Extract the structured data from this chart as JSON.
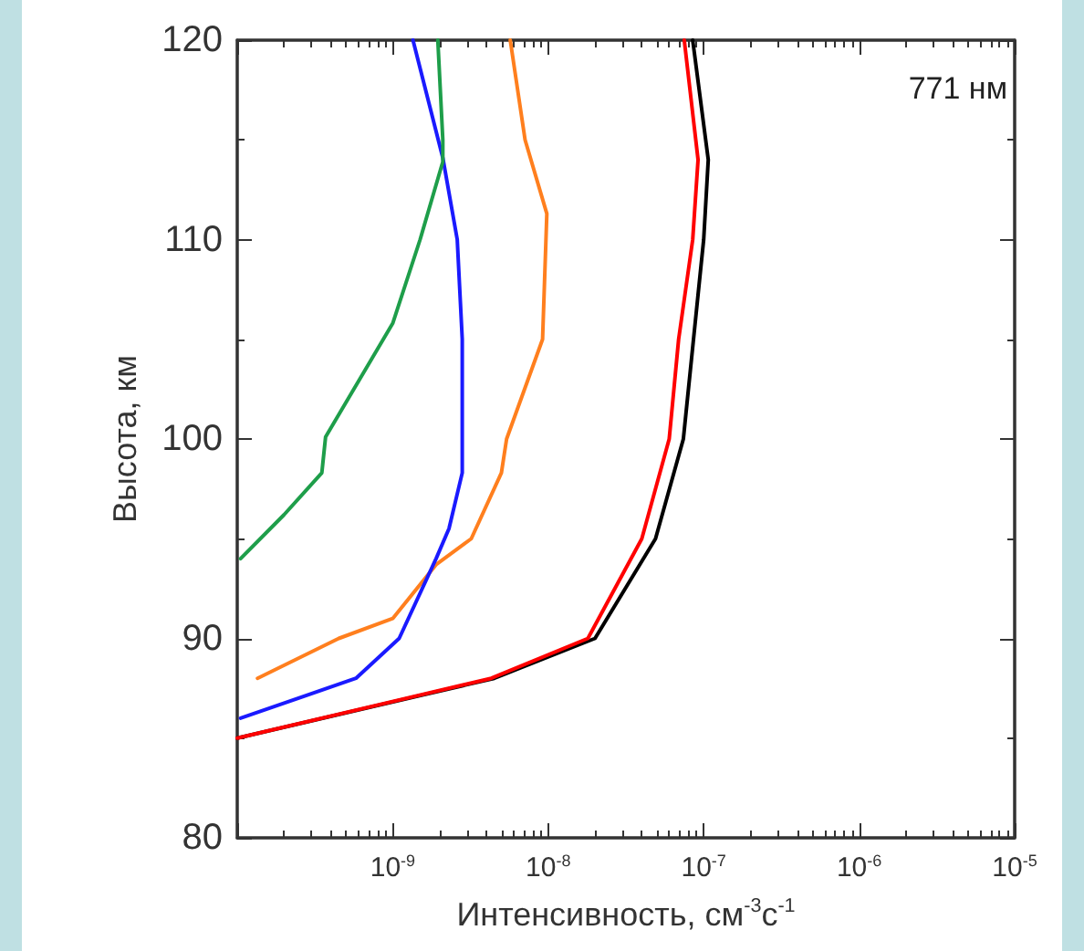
{
  "chart_data": {
    "type": "line",
    "xlabel": "Интенсивность, см$^{-3}$с$^{-1}$",
    "ylabel": "Высота, км",
    "annotations": [
      "771 нм"
    ],
    "log": "x",
    "grid": false,
    "marker": "none",
    "line_style": "solid",
    "xlim": [
      1e-10,
      1e-05
    ],
    "ylim": [
      80,
      120
    ],
    "xticks": [
      {
        "value": 1e-10,
        "label": null
      },
      {
        "value": 1e-09,
        "label": "10$^{-9}$"
      },
      {
        "value": 1e-08,
        "label": "10$^{-8}$"
      },
      {
        "value": 1e-07,
        "label": "10$^{-7}$"
      },
      {
        "value": 1e-06,
        "label": "10$^{-6}$"
      },
      {
        "value": 1e-05,
        "label": "10$^{-5}$"
      }
    ],
    "yticks": [
      80,
      90,
      100,
      110,
      120
    ],
    "series": [
      {
        "color": "#000000",
        "x": [
          1e-10,
          4.5e-09,
          2e-08,
          4.9e-08,
          7.4e-08,
          8.6e-08,
          1e-07,
          1.07e-07,
          8.5e-08
        ],
        "values": [
          85,
          88,
          90,
          95,
          100,
          105,
          110,
          114,
          120
        ]
      },
      {
        "color": "#ff0000",
        "x": [
          1e-10,
          4.3e-09,
          1.8e-08,
          4e-08,
          6e-08,
          6.9e-08,
          8.5e-08,
          9.2e-08,
          7.5e-08
        ],
        "values": [
          85,
          88,
          90,
          95,
          100,
          105,
          110,
          114,
          120
        ]
      },
      {
        "color": "#ff7f1e",
        "x": [
          1.35e-10,
          4.5e-10,
          1e-09,
          1.9e-09,
          3.2e-09,
          5e-09,
          5.4e-09,
          9.2e-09,
          9.8e-09,
          7.1e-09,
          5.7e-09
        ],
        "values": [
          88,
          90,
          91,
          93.7,
          95,
          98.3,
          100,
          105,
          111.3,
          115,
          120
        ]
      },
      {
        "color": "#1a1aff",
        "x": [
          1.05e-10,
          5.8e-10,
          1.1e-09,
          1.9e-09,
          2.3e-09,
          2.8e-09,
          2.8e-09,
          2.6e-09,
          2.1e-09,
          1.35e-09
        ],
        "values": [
          86,
          88,
          90,
          94,
          95.5,
          98.3,
          105,
          110,
          114.1,
          120
        ]
      },
      {
        "color": "#1e9e4a",
        "x": [
          1.05e-10,
          2e-10,
          3.5e-10,
          3.7e-10,
          1e-09,
          1.5e-09,
          2.1e-09,
          2.1e-09,
          1.95e-09
        ],
        "values": [
          94,
          96.2,
          98.3,
          100.1,
          105.8,
          110,
          113.9,
          115,
          120
        ]
      }
    ]
  }
}
